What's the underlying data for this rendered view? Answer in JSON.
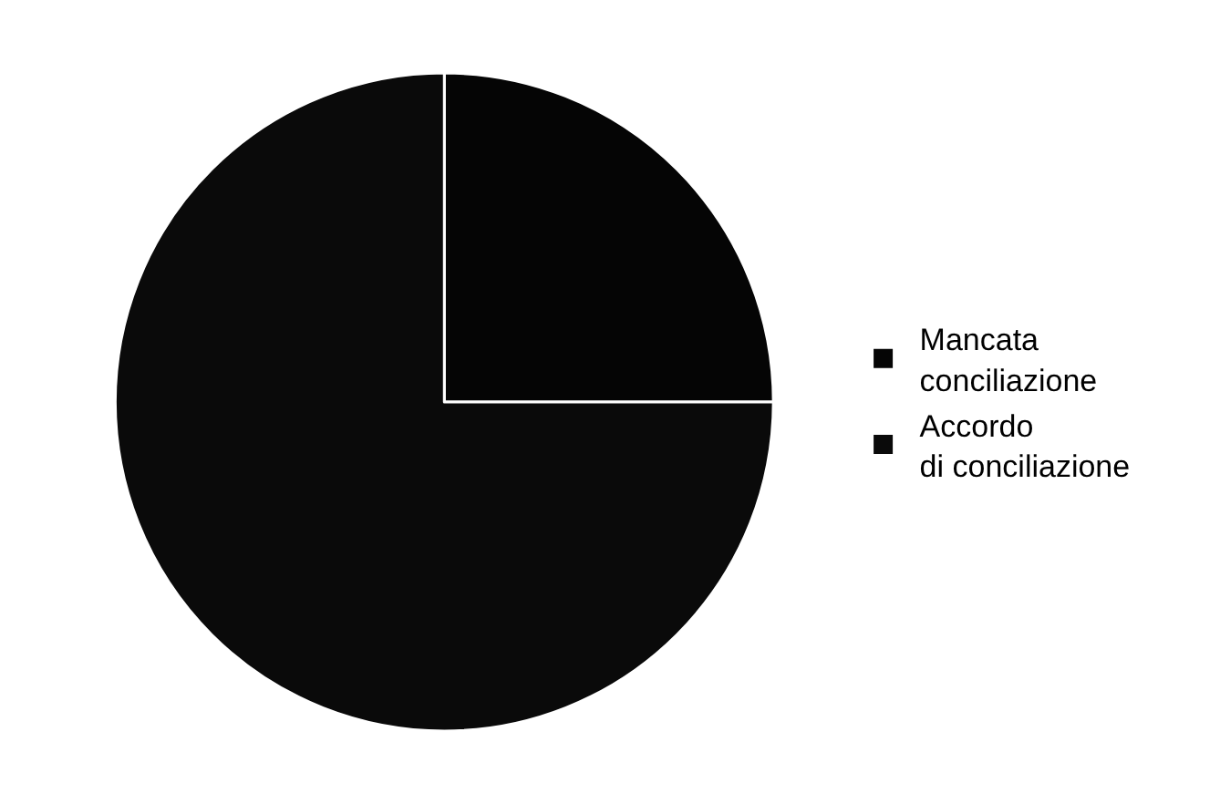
{
  "chart_data": {
    "type": "pie",
    "categories": [
      "Mancata conciliazione",
      "Accordo di conciliazione"
    ],
    "values": [
      25,
      75
    ],
    "colors": [
      "#050505",
      "#0a0a0a"
    ],
    "legend": "right"
  }
}
